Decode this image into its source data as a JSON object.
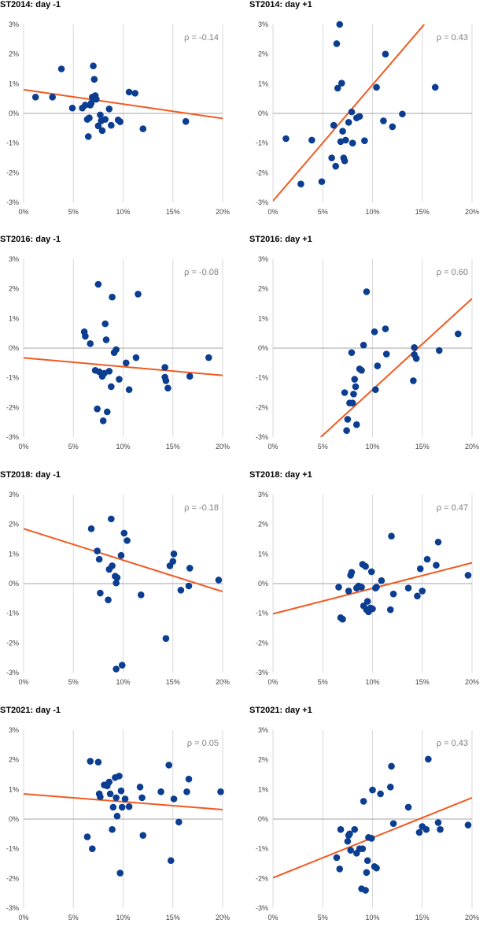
{
  "colors": {
    "points": "#0b3d91",
    "trend": "#f15a22",
    "grid": "#d9d9d9",
    "zero_line": "#a6a6a6"
  },
  "chart_data": [
    {
      "type": "scatter",
      "title": "ST2014: day -1",
      "annotation": "ρ = -0.14",
      "xlim": [
        0,
        20
      ],
      "ylim": [
        -3,
        3
      ],
      "xticks": [
        "0%",
        "5%",
        "10%",
        "15%",
        "20%"
      ],
      "yticks": [
        "3%",
        "2%",
        "1%",
        "0%",
        "-1%",
        "-2%",
        "-3%"
      ],
      "grid": "vertical",
      "trendline": {
        "x": [
          0,
          20
        ],
        "y": [
          0.8,
          -0.17
        ]
      },
      "points": [
        [
          1.2,
          0.55
        ],
        [
          2.9,
          0.55
        ],
        [
          3.8,
          1.5
        ],
        [
          4.9,
          0.18
        ],
        [
          5.9,
          0.18
        ],
        [
          6.2,
          0.28
        ],
        [
          6.4,
          -0.2
        ],
        [
          6.5,
          -0.78
        ],
        [
          6.6,
          -0.15
        ],
        [
          6.7,
          0.28
        ],
        [
          6.8,
          0.35
        ],
        [
          6.9,
          0.55
        ],
        [
          7.0,
          1.6
        ],
        [
          7.1,
          1.15
        ],
        [
          7.2,
          0.6
        ],
        [
          7.3,
          0.48
        ],
        [
          7.5,
          -0.42
        ],
        [
          7.7,
          -0.05
        ],
        [
          7.8,
          -0.25
        ],
        [
          7.9,
          -0.58
        ],
        [
          8.2,
          -0.2
        ],
        [
          8.6,
          0.15
        ],
        [
          8.8,
          -0.4
        ],
        [
          9.5,
          -0.22
        ],
        [
          9.7,
          -0.28
        ],
        [
          10.6,
          0.72
        ],
        [
          11.2,
          0.68
        ],
        [
          12.0,
          -0.52
        ],
        [
          16.3,
          -0.27
        ]
      ]
    },
    {
      "type": "scatter",
      "title": "ST2014: day +1",
      "annotation": "ρ = 0.43",
      "xlim": [
        0,
        20
      ],
      "ylim": [
        -3,
        3
      ],
      "xticks": [
        "0%",
        "5%",
        "10%",
        "15%",
        "20%"
      ],
      "yticks": [
        "3%",
        "2%",
        "1%",
        "0%",
        "-1%",
        "-2%",
        "-3%"
      ],
      "grid": "vertical",
      "trendline": {
        "x": [
          0,
          15.2
        ],
        "y": [
          -2.95,
          3.0
        ]
      },
      "points": [
        [
          1.3,
          -0.85
        ],
        [
          2.8,
          -2.38
        ],
        [
          3.9,
          -0.9
        ],
        [
          4.9,
          -2.3
        ],
        [
          5.9,
          -1.5
        ],
        [
          6.1,
          -0.4
        ],
        [
          6.3,
          -1.78
        ],
        [
          6.4,
          2.35
        ],
        [
          6.5,
          0.85
        ],
        [
          6.7,
          3.0
        ],
        [
          6.8,
          -0.95
        ],
        [
          6.9,
          1.02
        ],
        [
          7.0,
          -0.6
        ],
        [
          7.1,
          -1.5
        ],
        [
          7.2,
          -1.6
        ],
        [
          7.3,
          -0.9
        ],
        [
          7.6,
          -0.3
        ],
        [
          7.9,
          0.05
        ],
        [
          8.0,
          -1.0
        ],
        [
          8.4,
          -0.15
        ],
        [
          8.7,
          -0.1
        ],
        [
          9.2,
          -0.92
        ],
        [
          10.4,
          0.88
        ],
        [
          11.1,
          -0.25
        ],
        [
          11.3,
          2.0
        ],
        [
          12.0,
          -0.45
        ],
        [
          13.0,
          -0.02
        ],
        [
          16.3,
          0.88
        ]
      ]
    },
    {
      "type": "scatter",
      "title": "ST2016: day -1",
      "annotation": "ρ = -0.08",
      "xlim": [
        0,
        20
      ],
      "ylim": [
        -3,
        3
      ],
      "xticks": [
        "0%",
        "5%",
        "10%",
        "15%",
        "20%"
      ],
      "yticks": [
        "3%",
        "2%",
        "1%",
        "0%",
        "-1%",
        "-2%",
        "-3%"
      ],
      "grid": "vertical",
      "trendline": {
        "x": [
          0,
          20
        ],
        "y": [
          -0.33,
          -0.92
        ]
      },
      "points": [
        [
          6.1,
          0.55
        ],
        [
          6.2,
          0.4
        ],
        [
          6.7,
          0.15
        ],
        [
          7.2,
          -0.75
        ],
        [
          7.4,
          -2.05
        ],
        [
          7.5,
          2.15
        ],
        [
          7.6,
          -0.8
        ],
        [
          7.9,
          -0.95
        ],
        [
          8.0,
          -2.45
        ],
        [
          8.1,
          -0.85
        ],
        [
          8.2,
          0.82
        ],
        [
          8.3,
          0.28
        ],
        [
          8.4,
          -2.15
        ],
        [
          8.6,
          -0.78
        ],
        [
          8.8,
          -1.3
        ],
        [
          8.9,
          1.72
        ],
        [
          9.1,
          -0.15
        ],
        [
          9.3,
          -0.05
        ],
        [
          9.6,
          -1.05
        ],
        [
          10.3,
          -0.5
        ],
        [
          10.6,
          -1.4
        ],
        [
          11.3,
          -0.32
        ],
        [
          11.5,
          1.82
        ],
        [
          14.2,
          -0.65
        ],
        [
          14.2,
          -0.98
        ],
        [
          14.3,
          -1.1
        ],
        [
          14.5,
          -1.35
        ],
        [
          16.7,
          -0.95
        ],
        [
          18.6,
          -0.32
        ]
      ]
    },
    {
      "type": "scatter",
      "title": "ST2016: day +1",
      "annotation": "ρ = 0.60",
      "xlim": [
        0,
        20
      ],
      "ylim": [
        -3,
        3
      ],
      "xticks": [
        "0%",
        "5%",
        "10%",
        "15%",
        "20%"
      ],
      "yticks": [
        "3%",
        "2%",
        "1%",
        "0%",
        "-1%",
        "-2%",
        "-3%"
      ],
      "grid": "vertical",
      "trendline": {
        "x": [
          4.8,
          20
        ],
        "y": [
          -3.0,
          1.67
        ]
      },
      "points": [
        [
          7.2,
          -1.5
        ],
        [
          7.4,
          -2.78
        ],
        [
          7.5,
          -2.4
        ],
        [
          7.7,
          -1.85
        ],
        [
          7.9,
          -0.15
        ],
        [
          8.0,
          -1.85
        ],
        [
          8.1,
          -1.55
        ],
        [
          8.2,
          -1.05
        ],
        [
          8.3,
          -1.3
        ],
        [
          8.4,
          -2.58
        ],
        [
          8.7,
          -0.7
        ],
        [
          8.9,
          -0.75
        ],
        [
          9.1,
          0.1
        ],
        [
          9.4,
          1.9
        ],
        [
          10.2,
          0.55
        ],
        [
          10.3,
          -1.4
        ],
        [
          10.5,
          -0.6
        ],
        [
          11.3,
          0.65
        ],
        [
          11.4,
          -0.2
        ],
        [
          14.1,
          -1.1
        ],
        [
          14.2,
          0.02
        ],
        [
          14.2,
          -0.22
        ],
        [
          14.4,
          -0.35
        ],
        [
          16.7,
          -0.08
        ],
        [
          18.6,
          0.48
        ]
      ]
    },
    {
      "type": "scatter",
      "title": "ST2018: day -1",
      "annotation": "ρ = -0.18",
      "xlim": [
        0,
        20
      ],
      "ylim": [
        -3,
        3
      ],
      "xticks": [
        "0%",
        "5%",
        "10%",
        "15%",
        "20%"
      ],
      "yticks": [
        "3%",
        "2%",
        "1%",
        "0%",
        "-1%",
        "-2%",
        "-3%"
      ],
      "grid": "vertical",
      "trendline": {
        "x": [
          0,
          20
        ],
        "y": [
          1.85,
          -0.27
        ]
      },
      "points": [
        [
          6.8,
          1.85
        ],
        [
          7.4,
          1.1
        ],
        [
          7.6,
          0.82
        ],
        [
          7.7,
          -0.32
        ],
        [
          8.5,
          -0.55
        ],
        [
          8.6,
          0.48
        ],
        [
          8.8,
          2.18
        ],
        [
          8.9,
          0.6
        ],
        [
          9.2,
          0.25
        ],
        [
          9.3,
          0.02
        ],
        [
          9.3,
          -2.88
        ],
        [
          9.4,
          0.2
        ],
        [
          9.8,
          0.95
        ],
        [
          9.9,
          -2.75
        ],
        [
          10.1,
          1.7
        ],
        [
          10.4,
          1.45
        ],
        [
          11.8,
          -0.38
        ],
        [
          14.3,
          -1.85
        ],
        [
          14.7,
          0.6
        ],
        [
          15.0,
          0.75
        ],
        [
          15.1,
          1.0
        ],
        [
          15.8,
          -0.22
        ],
        [
          16.6,
          -0.08
        ],
        [
          16.7,
          0.52
        ],
        [
          19.6,
          0.12
        ]
      ]
    },
    {
      "type": "scatter",
      "title": "ST2018: day +1",
      "annotation": "ρ = 0.47",
      "xlim": [
        0,
        20
      ],
      "ylim": [
        -3,
        3
      ],
      "xticks": [
        "0%",
        "5%",
        "10%",
        "15%",
        "20%"
      ],
      "yticks": [
        "3%",
        "2%",
        "1%",
        "0%",
        "-1%",
        "-2%",
        "-3%"
      ],
      "grid": "vertical",
      "trendline": {
        "x": [
          0,
          20
        ],
        "y": [
          -1.02,
          0.7
        ]
      },
      "points": [
        [
          6.6,
          -0.12
        ],
        [
          6.8,
          -1.15
        ],
        [
          7.0,
          -1.2
        ],
        [
          7.6,
          -0.25
        ],
        [
          7.8,
          0.28
        ],
        [
          7.9,
          0.38
        ],
        [
          8.4,
          -0.15
        ],
        [
          8.6,
          -0.08
        ],
        [
          8.9,
          -0.12
        ],
        [
          9.0,
          0.65
        ],
        [
          9.1,
          -0.75
        ],
        [
          9.3,
          0.58
        ],
        [
          9.4,
          -0.88
        ],
        [
          9.5,
          -0.6
        ],
        [
          9.6,
          -0.95
        ],
        [
          9.8,
          -0.82
        ],
        [
          9.9,
          0.4
        ],
        [
          10.0,
          -0.85
        ],
        [
          10.3,
          -0.15
        ],
        [
          10.4,
          -0.12
        ],
        [
          10.9,
          0.1
        ],
        [
          11.8,
          -0.88
        ],
        [
          11.9,
          1.6
        ],
        [
          12.1,
          -0.35
        ],
        [
          13.6,
          -0.15
        ],
        [
          14.5,
          -0.42
        ],
        [
          14.8,
          0.5
        ],
        [
          15.0,
          -0.25
        ],
        [
          15.5,
          0.82
        ],
        [
          16.4,
          0.62
        ],
        [
          16.6,
          1.4
        ],
        [
          19.6,
          0.28
        ]
      ]
    },
    {
      "type": "scatter",
      "title": "ST2021: day -1",
      "annotation": "ρ = 0.05",
      "xlim": [
        0,
        20
      ],
      "ylim": [
        -3,
        3
      ],
      "xticks": [
        "0%",
        "5%",
        "10%",
        "15%",
        "20%"
      ],
      "yticks": [
        "3%",
        "2%",
        "1%",
        "0%",
        "-1%",
        "-2%",
        "-3%"
      ],
      "grid": "vertical",
      "trendline": {
        "x": [
          0,
          20
        ],
        "y": [
          0.85,
          0.32
        ]
      },
      "points": [
        [
          6.4,
          -0.6
        ],
        [
          6.7,
          1.95
        ],
        [
          6.9,
          -1.0
        ],
        [
          7.5,
          1.92
        ],
        [
          7.6,
          0.85
        ],
        [
          7.7,
          0.75
        ],
        [
          8.1,
          1.15
        ],
        [
          8.4,
          1.12
        ],
        [
          8.6,
          1.25
        ],
        [
          8.7,
          0.85
        ],
        [
          8.9,
          -0.35
        ],
        [
          9.0,
          0.4
        ],
        [
          9.2,
          1.4
        ],
        [
          9.3,
          0.72
        ],
        [
          9.4,
          0.1
        ],
        [
          9.6,
          1.45
        ],
        [
          9.7,
          -1.82
        ],
        [
          9.8,
          0.95
        ],
        [
          9.9,
          0.4
        ],
        [
          10.2,
          0.68
        ],
        [
          10.6,
          0.42
        ],
        [
          11.7,
          1.08
        ],
        [
          11.9,
          0.72
        ],
        [
          12.0,
          -0.55
        ],
        [
          13.8,
          0.92
        ],
        [
          14.6,
          1.82
        ],
        [
          14.8,
          -1.4
        ],
        [
          15.1,
          0.68
        ],
        [
          15.6,
          -0.1
        ],
        [
          16.4,
          0.92
        ],
        [
          16.6,
          1.35
        ],
        [
          19.8,
          0.92
        ]
      ]
    },
    {
      "type": "scatter",
      "title": "ST2021: day +1",
      "annotation": "ρ = 0.43",
      "xlim": [
        0,
        20
      ],
      "ylim": [
        -3,
        3
      ],
      "xticks": [
        "0%",
        "5%",
        "10%",
        "15%",
        "20%"
      ],
      "yticks": [
        "3%",
        "2%",
        "1%",
        "0%",
        "-1%",
        "-2%",
        "-3%"
      ],
      "grid": "vertical",
      "trendline": {
        "x": [
          0,
          20
        ],
        "y": [
          -1.98,
          0.72
        ]
      },
      "points": [
        [
          6.4,
          -1.3
        ],
        [
          6.7,
          -1.68
        ],
        [
          6.8,
          -0.35
        ],
        [
          7.5,
          -0.75
        ],
        [
          7.6,
          -0.55
        ],
        [
          7.7,
          -0.5
        ],
        [
          7.8,
          -1.05
        ],
        [
          8.2,
          -0.35
        ],
        [
          8.4,
          -1.15
        ],
        [
          8.7,
          -1.0
        ],
        [
          8.9,
          -2.35
        ],
        [
          9.0,
          -1.0
        ],
        [
          9.1,
          0.6
        ],
        [
          9.3,
          -2.4
        ],
        [
          9.4,
          -1.8
        ],
        [
          9.5,
          -1.4
        ],
        [
          9.6,
          -0.62
        ],
        [
          9.9,
          -0.65
        ],
        [
          10.0,
          0.98
        ],
        [
          10.2,
          -1.6
        ],
        [
          10.4,
          -1.65
        ],
        [
          10.8,
          0.85
        ],
        [
          11.8,
          1.08
        ],
        [
          11.9,
          1.78
        ],
        [
          12.1,
          -0.15
        ],
        [
          13.6,
          0.4
        ],
        [
          14.7,
          -0.45
        ],
        [
          15.0,
          -0.25
        ],
        [
          15.4,
          -0.35
        ],
        [
          15.6,
          2.02
        ],
        [
          16.6,
          -0.12
        ],
        [
          16.8,
          -0.35
        ],
        [
          19.6,
          -0.2
        ]
      ]
    }
  ]
}
